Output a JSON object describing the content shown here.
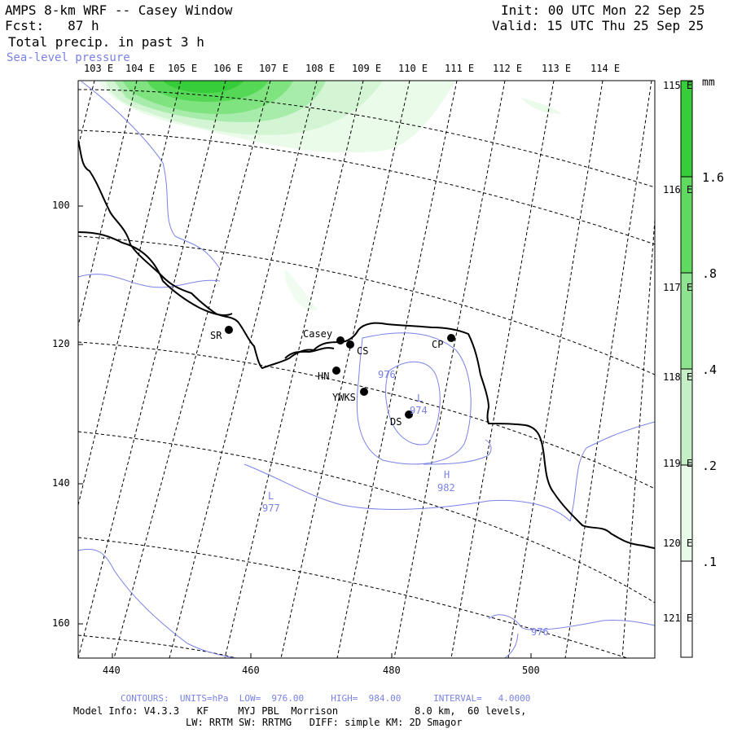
{
  "header": {
    "title": "AMPS 8-km WRF -- Casey Window",
    "forecast": "Fcst:   87 h",
    "field": "Total precip. in past 3 h",
    "overlay": "Sea-level pressure",
    "init": "Init: 00 UTC Mon 22 Sep 25",
    "valid": "Valid: 15 UTC Thu 25 Sep 25"
  },
  "top_lon_labels": [
    "103 E",
    "104 E",
    "105 E",
    "106 E",
    "107 E",
    "108 E",
    "109 E",
    "110 E",
    "111 E",
    "112 E",
    "113 E",
    "114 E"
  ],
  "right_lat_labels": [
    "115 E",
    "116 E",
    "117 E",
    "118 E",
    "119 E",
    "120 E",
    "121 E"
  ],
  "x_axis_ticks": [
    "440",
    "460",
    "480",
    "500"
  ],
  "y_axis_ticks": [
    "100",
    "120",
    "140",
    "160"
  ],
  "colorbar": {
    "unit": "mm",
    "labels": [
      "1.6",
      ".8",
      ".4",
      ".2",
      ".1"
    ],
    "colors": [
      "#36d436",
      "#5fe05f",
      "#8ee88e",
      "#c2f2c2",
      "#e6fbe6",
      "#ffffff"
    ]
  },
  "stations": [
    {
      "name": "SR"
    },
    {
      "name": "Casey"
    },
    {
      "name": "CS"
    },
    {
      "name": "HN"
    },
    {
      "name": "YWKS"
    },
    {
      "name": "DS"
    },
    {
      "name": "CP"
    }
  ],
  "pressure_labels": [
    "976",
    "L",
    "974",
    "H",
    "982",
    "L",
    "977",
    "976"
  ],
  "footer": {
    "contours": "CONTOURS:  UNITS=hPa  LOW=  976.00     HIGH=  984.00      INTERVAL=   4.0000",
    "model_info": "Model Info: V4.3.3   KF     MYJ PBL  Morrison             8.0 km,  60 levels,",
    "physics": "LW: RRTM SW: RRTMG   DIFF: simple KM: 2D Smagor"
  }
}
